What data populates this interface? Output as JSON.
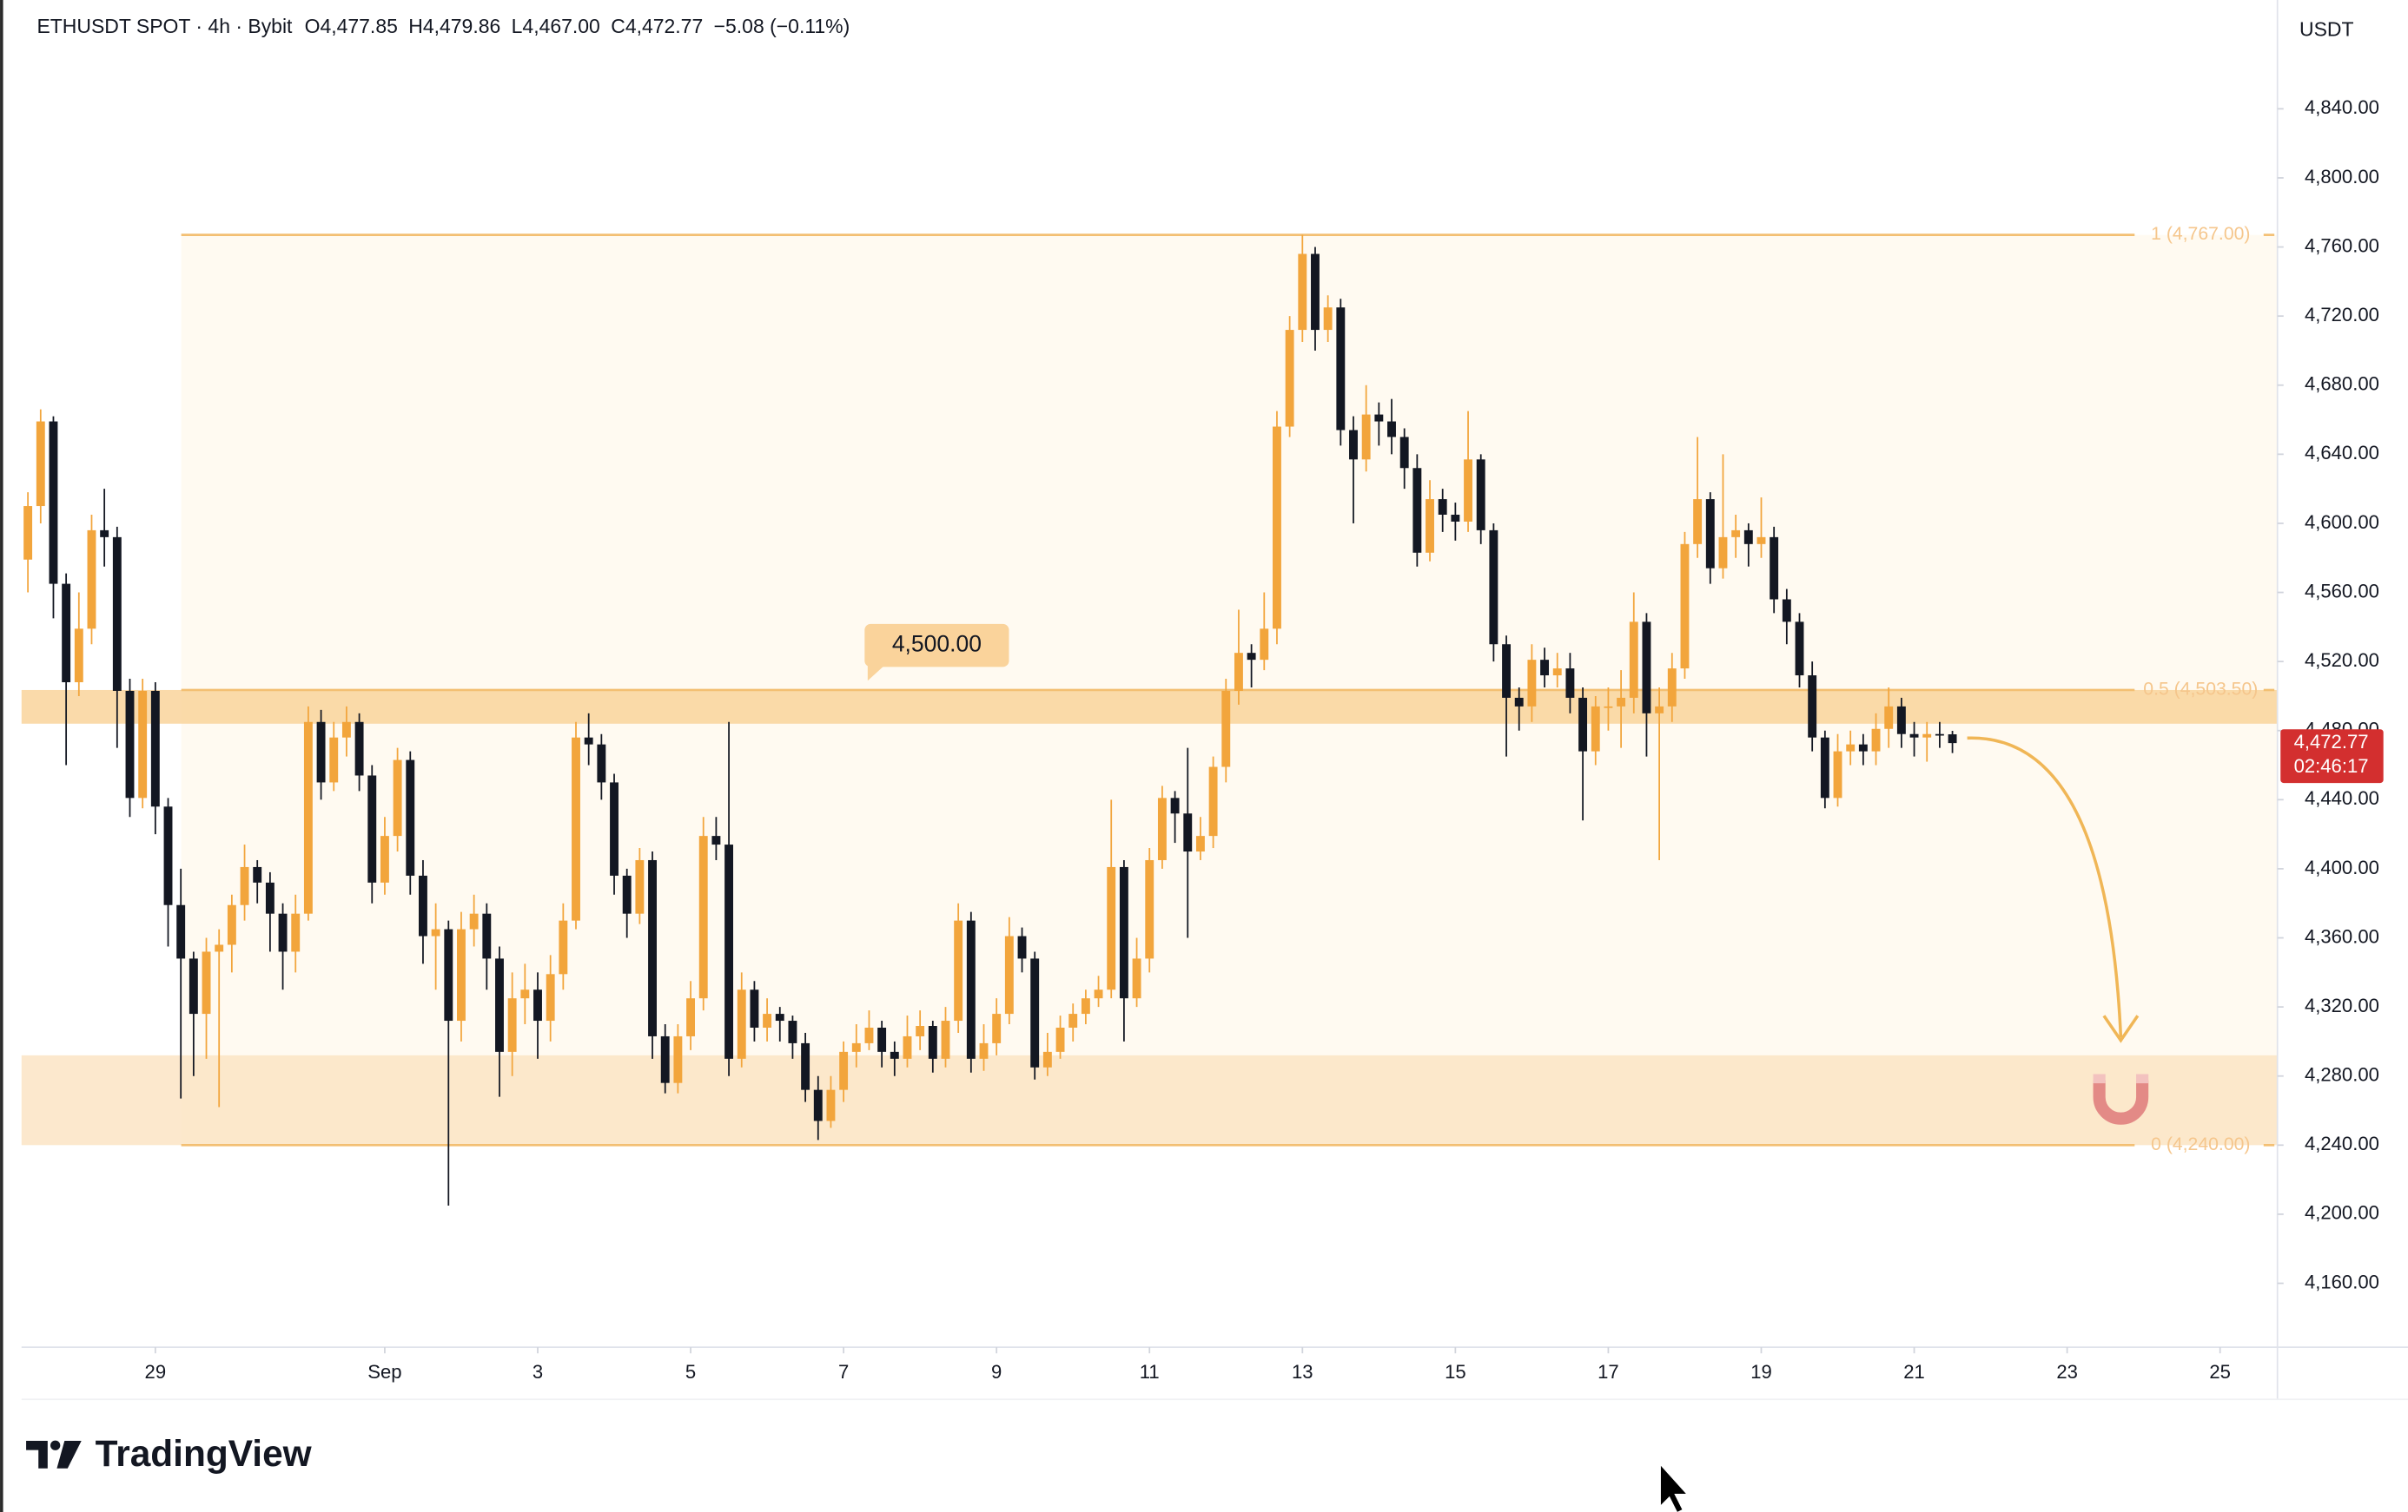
{
  "chart_data": {
    "type": "candlestick",
    "symbol": "ETHUSDT SPOT · 4h · Bybit",
    "legend_values": [
      {
        "key": "O",
        "text": "4,477.85"
      },
      {
        "key": "H",
        "text": "4,479.86"
      },
      {
        "key": "L",
        "text": "4,467.00"
      },
      {
        "key": "C",
        "text": "4,472.77"
      }
    ],
    "change": "−5.08 (−0.11%)",
    "currency": "USDT",
    "brand": "TradingView",
    "up_color": "#f2a53c",
    "down_color": "#131722",
    "grid": false,
    "open": [
      4579,
      4610,
      4659,
      4565,
      4508,
      4539,
      4596,
      4592,
      4503,
      4441,
      4503,
      4436,
      4379,
      4348,
      4316,
      4352,
      4356,
      4379,
      4401,
      4392,
      4374,
      4352,
      4374,
      4485,
      4450,
      4476,
      4485,
      4454,
      4392,
      4419,
      4463,
      4396,
      4361,
      4365,
      4312,
      4365,
      4374,
      4348,
      4294,
      4325,
      4330,
      4312,
      4339,
      4370,
      4476,
      4472,
      4450,
      4396,
      4374,
      4405,
      4303,
      4276,
      4303,
      4325,
      4419,
      4414,
      4290,
      4330,
      4308,
      4316,
      4312,
      4299,
      4272,
      4254,
      4272,
      4294,
      4299,
      4308,
      4294,
      4290,
      4303,
      4309,
      4290,
      4312,
      4370,
      4290,
      4299,
      4316,
      4361,
      4348,
      4285,
      4294,
      4308,
      4316,
      4325,
      4330,
      4401,
      4325,
      4348,
      4405,
      4441,
      4432,
      4410,
      4419,
      4459,
      4503,
      4525,
      4521,
      4539,
      4656,
      4712,
      4756,
      4712,
      4725,
      4654,
      4637,
      4663,
      4659,
      4650,
      4632,
      4583,
      4614,
      4605,
      4601,
      4637,
      4596,
      4530,
      4499,
      4494,
      4521,
      4512,
      4516,
      4499,
      4468,
      4494,
      4494,
      4499,
      4543,
      4490,
      4494,
      4516,
      4588,
      4614,
      4574,
      4592,
      4596,
      4588,
      4592,
      4556,
      4543,
      4512,
      4476,
      4441,
      4468,
      4472,
      4468,
      4481,
      4494,
      4478,
      4476,
      4478,
      4477.85
    ],
    "high": [
      4618,
      4666,
      4662,
      4571,
      4560,
      4605,
      4620,
      4598,
      4510,
      4510,
      4508,
      4441,
      4400,
      4352,
      4360,
      4365,
      4385,
      4414,
      4405,
      4398,
      4380,
      4385,
      4494,
      4492,
      4485,
      4494,
      4490,
      4460,
      4430,
      4470,
      4468,
      4405,
      4380,
      4370,
      4375,
      4385,
      4380,
      4355,
      4340,
      4345,
      4340,
      4350,
      4380,
      4485,
      4490,
      4478,
      4455,
      4400,
      4412,
      4410,
      4310,
      4310,
      4335,
      4430,
      4430,
      4485,
      4340,
      4335,
      4325,
      4320,
      4315,
      4305,
      4280,
      4280,
      4300,
      4310,
      4318,
      4312,
      4300,
      4315,
      4318,
      4312,
      4320,
      4380,
      4375,
      4310,
      4325,
      4372,
      4366,
      4352,
      4305,
      4315,
      4322,
      4330,
      4338,
      4440,
      4405,
      4360,
      4412,
      4448,
      4445,
      4470,
      4430,
      4465,
      4510,
      4550,
      4530,
      4560,
      4665,
      4720,
      4767,
      4760,
      4732,
      4730,
      4662,
      4680,
      4670,
      4672,
      4655,
      4640,
      4625,
      4620,
      4612,
      4665,
      4640,
      4600,
      4535,
      4505,
      4530,
      4528,
      4525,
      4525,
      4505,
      4500,
      4505,
      4515,
      4560,
      4548,
      4505,
      4525,
      4595,
      4650,
      4618,
      4640,
      4605,
      4600,
      4615,
      4598,
      4562,
      4548,
      4520,
      4480,
      4478,
      4480,
      4478,
      4490,
      4505,
      4499,
      4485,
      4485,
      4485,
      4479.86
    ],
    "low": [
      4560,
      4600,
      4545,
      4460,
      4500,
      4530,
      4575,
      4470,
      4430,
      4435,
      4420,
      4355,
      4267,
      4280,
      4290,
      4262,
      4340,
      4370,
      4380,
      4352,
      4330,
      4340,
      4370,
      4440,
      4445,
      4465,
      4445,
      4380,
      4385,
      4410,
      4385,
      4345,
      4330,
      4205,
      4300,
      4355,
      4330,
      4268,
      4280,
      4310,
      4290,
      4300,
      4330,
      4365,
      4460,
      4440,
      4385,
      4360,
      4368,
      4290,
      4270,
      4270,
      4295,
      4318,
      4405,
      4280,
      4285,
      4300,
      4300,
      4300,
      4290,
      4265,
      4243,
      4250,
      4265,
      4285,
      4295,
      4285,
      4280,
      4285,
      4295,
      4282,
      4285,
      4305,
      4282,
      4283,
      4292,
      4310,
      4340,
      4278,
      4280,
      4290,
      4300,
      4310,
      4320,
      4325,
      4300,
      4320,
      4340,
      4400,
      4415,
      4360,
      4405,
      4412,
      4450,
      4495,
      4505,
      4515,
      4530,
      4650,
      4705,
      4700,
      4705,
      4645,
      4600,
      4630,
      4645,
      4640,
      4620,
      4575,
      4578,
      4595,
      4590,
      4595,
      4588,
      4520,
      4465,
      4480,
      4485,
      4505,
      4505,
      4490,
      4428,
      4460,
      4480,
      4470,
      4490,
      4465,
      4405,
      4485,
      4510,
      4580,
      4565,
      4568,
      4580,
      4575,
      4580,
      4548,
      4530,
      4505,
      4468,
      4435,
      4436,
      4460,
      4460,
      4460,
      4470,
      4470,
      4465,
      4462,
      4470,
      4467
    ],
    "close": [
      4610,
      4659,
      4565,
      4508,
      4539,
      4596,
      4592,
      4503,
      4441,
      4503,
      4436,
      4379,
      4348,
      4316,
      4352,
      4356,
      4379,
      4401,
      4392,
      4374,
      4352,
      4374,
      4485,
      4450,
      4476,
      4485,
      4454,
      4392,
      4419,
      4463,
      4396,
      4361,
      4365,
      4312,
      4365,
      4374,
      4348,
      4294,
      4325,
      4330,
      4312,
      4339,
      4370,
      4476,
      4472,
      4450,
      4396,
      4374,
      4405,
      4303,
      4276,
      4303,
      4325,
      4419,
      4414,
      4290,
      4330,
      4308,
      4316,
      4312,
      4299,
      4272,
      4254,
      4272,
      4294,
      4299,
      4308,
      4294,
      4290,
      4303,
      4309,
      4290,
      4312,
      4370,
      4290,
      4299,
      4316,
      4361,
      4348,
      4285,
      4294,
      4308,
      4316,
      4325,
      4330,
      4401,
      4325,
      4348,
      4405,
      4441,
      4432,
      4410,
      4419,
      4459,
      4503,
      4525,
      4521,
      4539,
      4656,
      4712,
      4756,
      4712,
      4725,
      4654,
      4637,
      4663,
      4659,
      4650,
      4632,
      4583,
      4614,
      4605,
      4601,
      4637,
      4596,
      4530,
      4499,
      4494,
      4521,
      4512,
      4516,
      4499,
      4468,
      4494,
      4494,
      4499,
      4543,
      4490,
      4494,
      4516,
      4588,
      4614,
      4574,
      4592,
      4596,
      4588,
      4592,
      4556,
      4543,
      4512,
      4476,
      4441,
      4468,
      4472,
      4468,
      4481,
      4494,
      4478,
      4476,
      4478,
      4477.85,
      4472.77
    ],
    "xlim": [
      -0.5,
      176.5
    ],
    "xticks": [
      {
        "value": 10,
        "label": "29"
      },
      {
        "value": 28,
        "label": "Sep"
      },
      {
        "value": 40,
        "label": "3"
      },
      {
        "value": 52,
        "label": "5"
      },
      {
        "value": 64,
        "label": "7"
      },
      {
        "value": 76,
        "label": "9"
      },
      {
        "value": 88,
        "label": "11"
      },
      {
        "value": 100,
        "label": "13"
      },
      {
        "value": 112,
        "label": "15"
      },
      {
        "value": 124,
        "label": "17"
      },
      {
        "value": 136,
        "label": "19"
      },
      {
        "value": 148,
        "label": "21"
      },
      {
        "value": 160,
        "label": "23"
      },
      {
        "value": 172,
        "label": "25"
      }
    ],
    "ylim": [
      4123,
      4903
    ],
    "yticks": [
      {
        "value": 4160,
        "label": "4,160.00"
      },
      {
        "value": 4200,
        "label": "4,200.00"
      },
      {
        "value": 4240,
        "label": "4,240.00"
      },
      {
        "value": 4280,
        "label": "4,280.00"
      },
      {
        "value": 4320,
        "label": "4,320.00"
      },
      {
        "value": 4360,
        "label": "4,360.00"
      },
      {
        "value": 4400,
        "label": "4,400.00"
      },
      {
        "value": 4440,
        "label": "4,440.00"
      },
      {
        "value": 4480,
        "label": "4,480.00"
      },
      {
        "value": 4520,
        "label": "4,520.00"
      },
      {
        "value": 4560,
        "label": "4,560.00"
      },
      {
        "value": 4600,
        "label": "4,600.00"
      },
      {
        "value": 4640,
        "label": "4,640.00"
      },
      {
        "value": 4680,
        "label": "4,680.00"
      },
      {
        "value": 4720,
        "label": "4,720.00"
      },
      {
        "value": 4760,
        "label": "4,760.00"
      },
      {
        "value": 4800,
        "label": "4,800.00"
      },
      {
        "value": 4840,
        "label": "4,840.00"
      }
    ],
    "fib_levels": [
      {
        "value": 4767,
        "label": "1 (4,767.00)"
      },
      {
        "value": 4503.5,
        "label": "0.5 (4,503.50)"
      },
      {
        "value": 4240,
        "label": "0 (4,240.00)"
      }
    ],
    "zones": [
      {
        "from": 4484,
        "to": 4503.5,
        "color": "#f9d39b"
      },
      {
        "from": 4240,
        "to": 4292,
        "color": "#fbe4c4"
      }
    ],
    "callout": {
      "value": 4500,
      "label": "4,500.00"
    },
    "last_price": {
      "value": 4472.77,
      "label": "4,472.77",
      "countdown": "02:46:17",
      "color": "#d32f2f"
    }
  }
}
